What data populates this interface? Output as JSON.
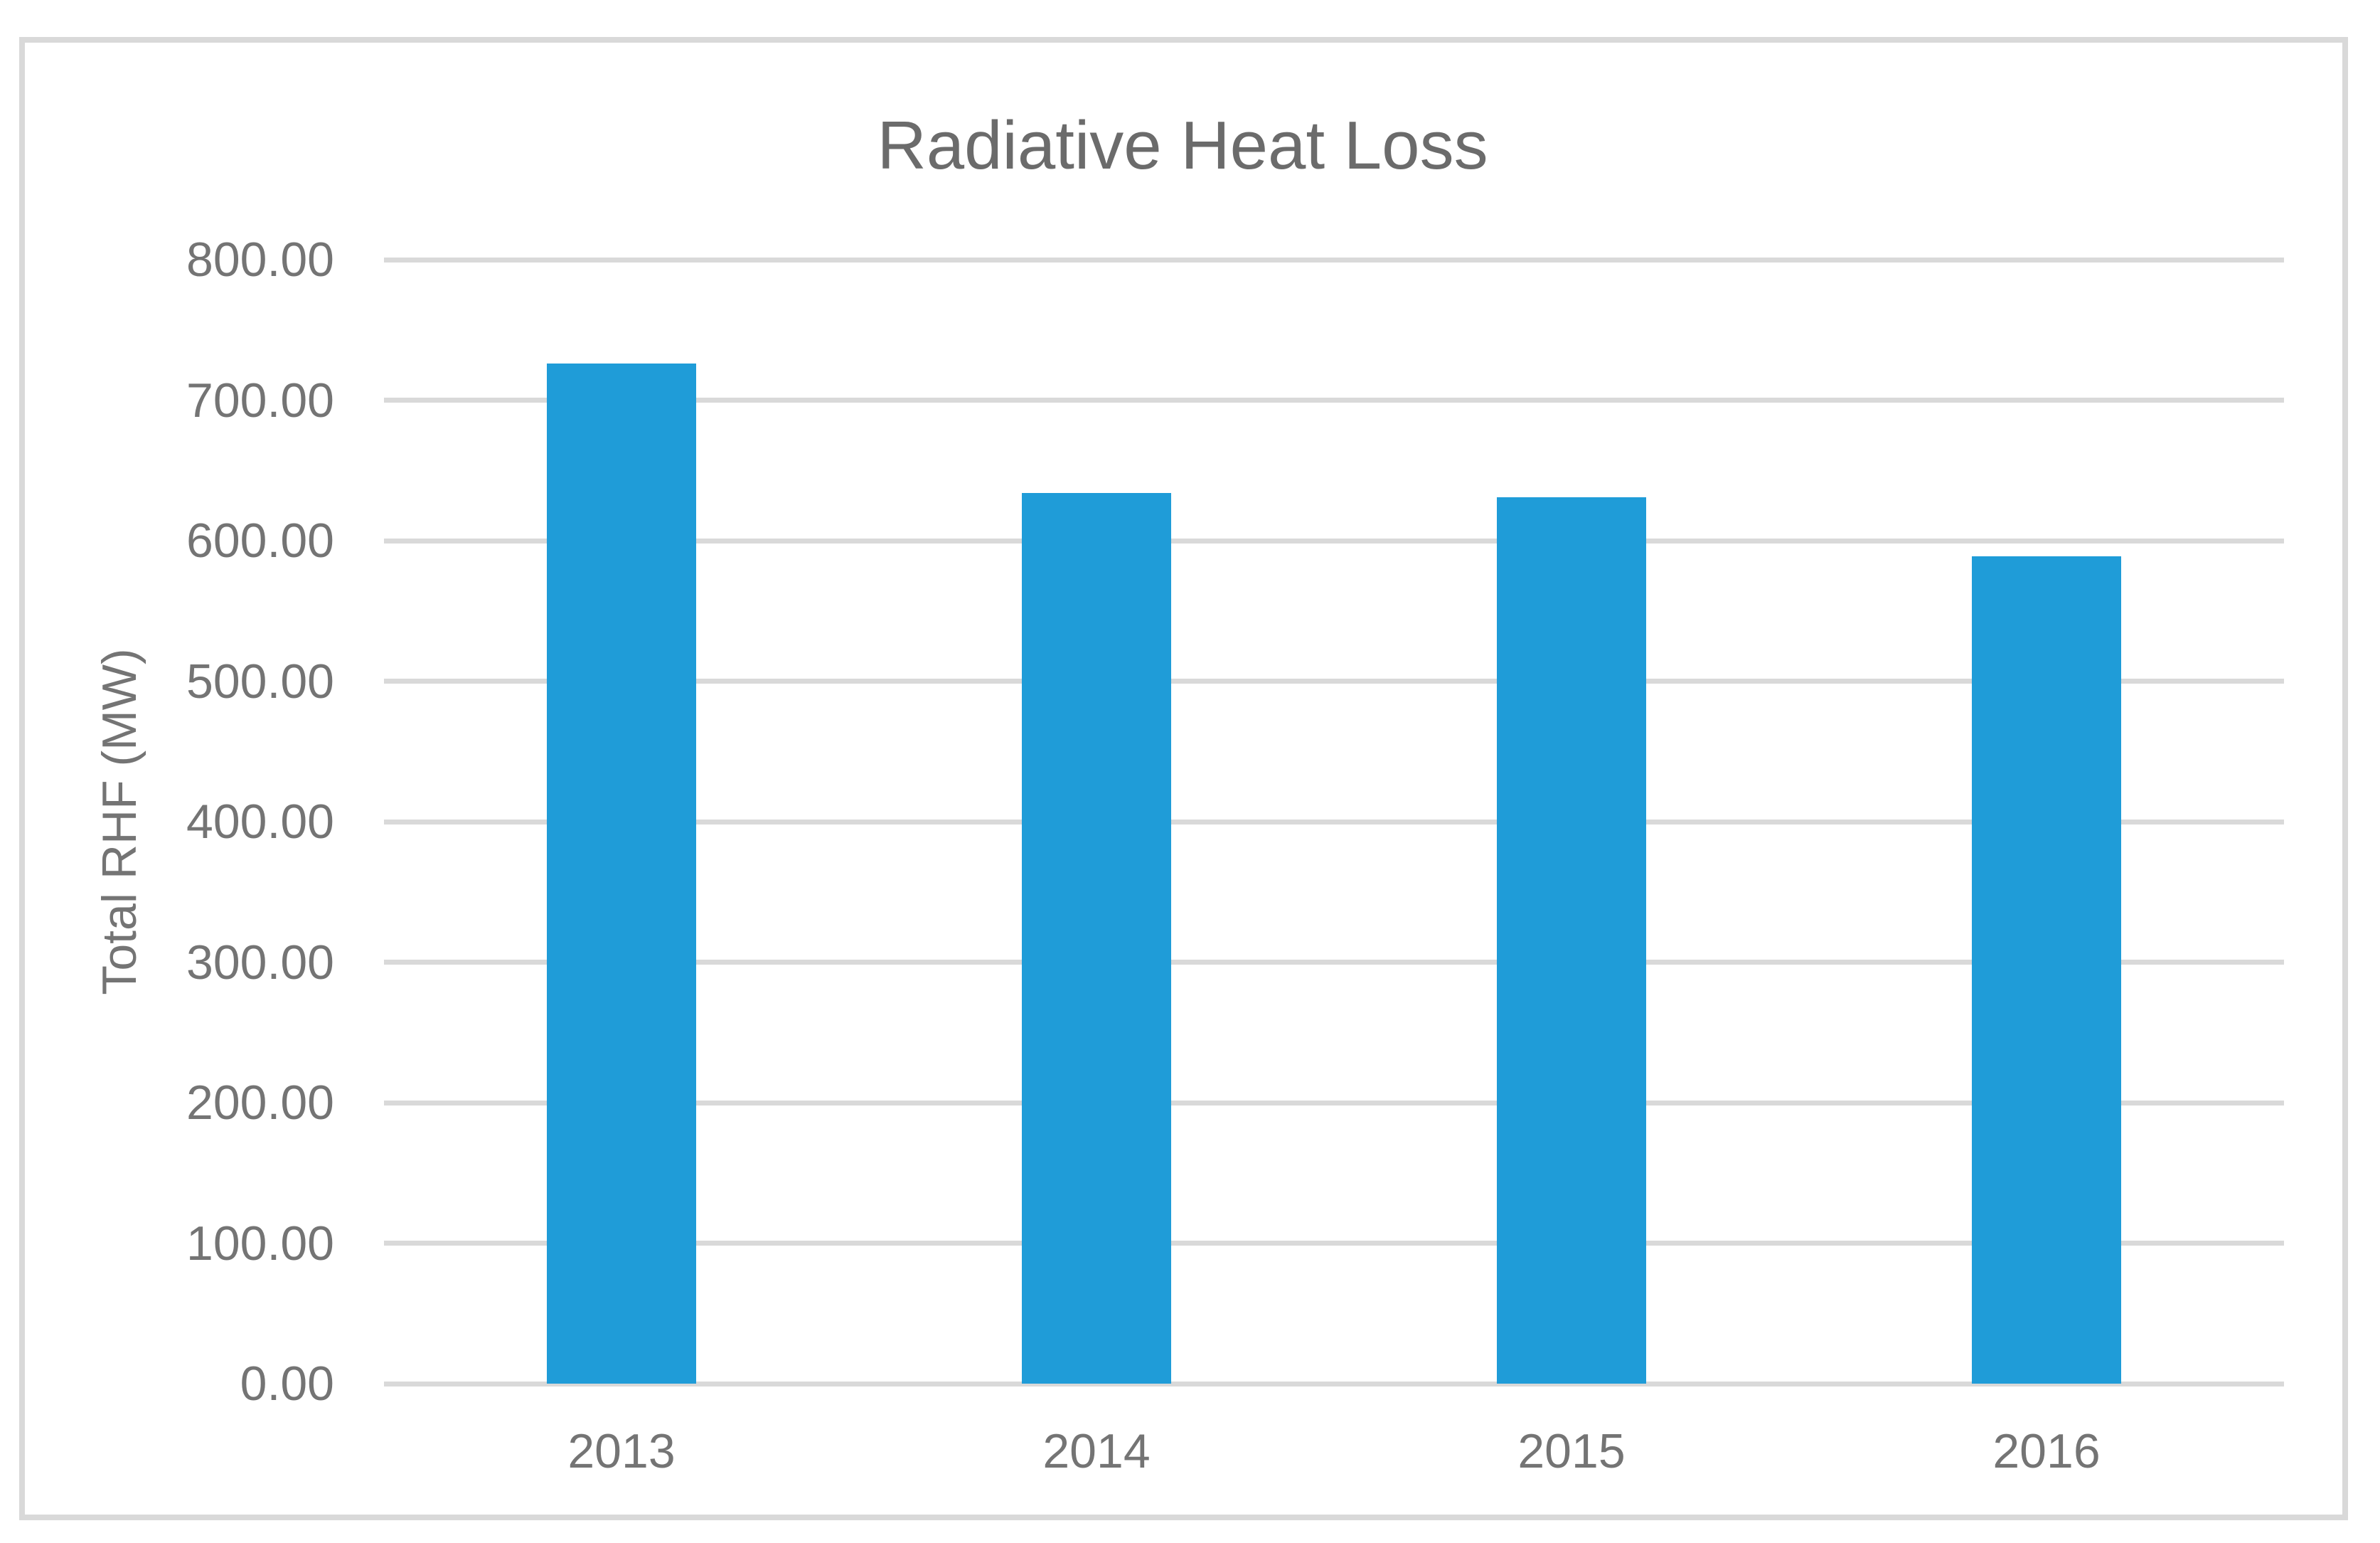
{
  "chart_data": {
    "type": "bar",
    "title": "Radiative Heat Loss",
    "categories": [
      "2013",
      "2014",
      "2015",
      "2016"
    ],
    "values": [
      726,
      634,
      631,
      589
    ],
    "xlabel": "",
    "ylabel": "Total RHF (MW)",
    "ylim": [
      0,
      800
    ],
    "ytick_step": 100,
    "ytick_decimals": 2,
    "ytick_labels": [
      "0.00",
      "100.00",
      "200.00",
      "300.00",
      "400.00",
      "500.00",
      "600.00",
      "700.00",
      "800.00"
    ],
    "grid": "horizontal-only",
    "legend": "none",
    "bar_color": "#1F9CD8",
    "gridline_color": "#D9D9D9",
    "frame_color": "#D9D9D9",
    "title_color": "#6B6B6B",
    "axis_text_color": "#747474",
    "background_color": "#FFFFFF"
  }
}
